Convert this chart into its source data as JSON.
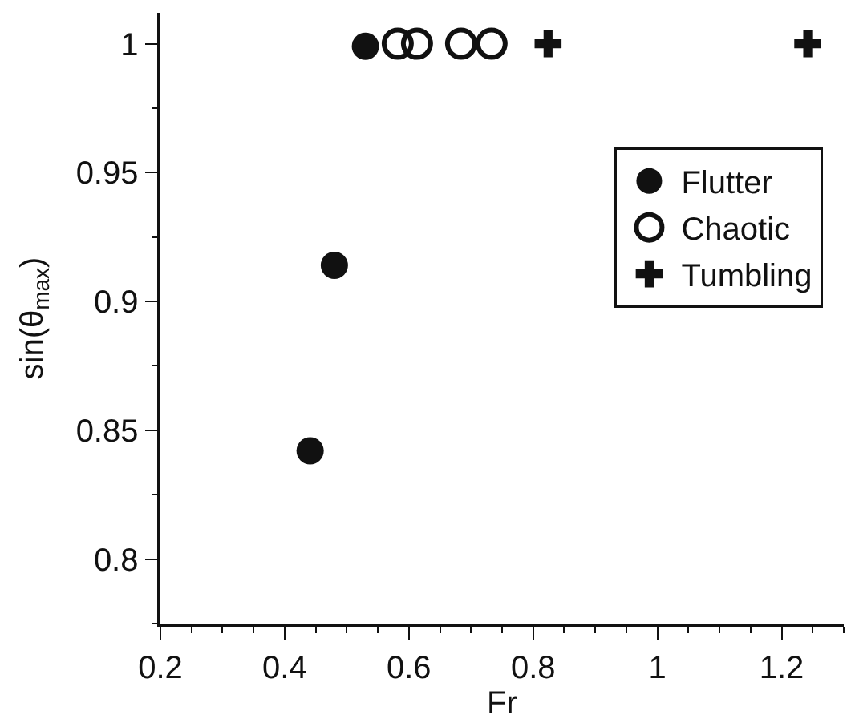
{
  "chart_data": {
    "type": "scatter",
    "xlabel": "Fr",
    "ylabel": "sin(θ$_{max}$)",
    "xlim": [
      0.2,
      1.3
    ],
    "xticks": [
      0.2,
      0.4,
      0.6,
      0.8,
      {
        "value": 1.0,
        "label": "1"
      },
      1.2
    ],
    "ylim": [
      0.775,
      1.012
    ],
    "yticks": [
      0.8,
      0.85,
      0.9,
      0.95,
      {
        "value": 1.0,
        "label": "1"
      }
    ],
    "legend": "top right",
    "series": [
      {
        "name": "Flutter",
        "color": "#111111",
        "marker": "circle",
        "x": [
          0.441,
          0.48,
          0.53
        ],
        "values": [
          0.842,
          0.914,
          0.999
        ]
      },
      {
        "name": "Chaotic",
        "color": "#111111",
        "marker": "circle-open",
        "x": [
          0.582,
          0.613,
          0.684,
          0.733
        ],
        "values": [
          1.0,
          1.0,
          1.0,
          1.0
        ]
      },
      {
        "name": "Tumbling",
        "color": "#111111",
        "marker": "cross",
        "x": [
          0.824,
          1.242
        ],
        "values": [
          1.0,
          1.0
        ]
      }
    ]
  }
}
